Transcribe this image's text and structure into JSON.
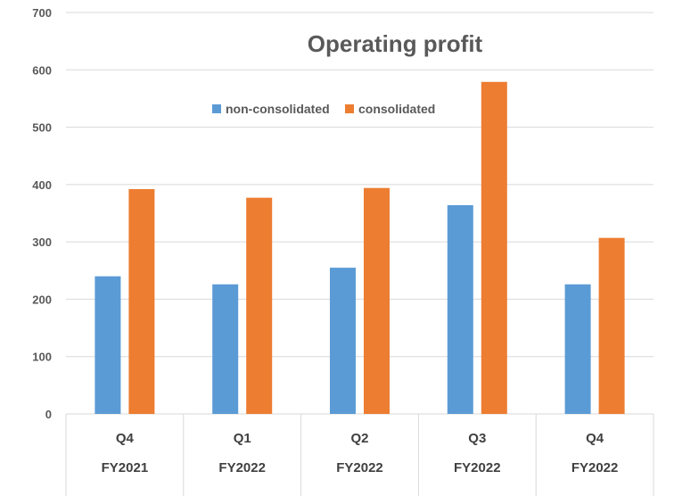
{
  "chart_data": {
    "type": "bar",
    "title": "Operating profit",
    "xlabel": "",
    "ylabel": "",
    "ylim": [
      0,
      700
    ],
    "yticks": [
      0,
      100,
      200,
      300,
      400,
      500,
      600,
      700
    ],
    "grid": true,
    "legend_position": "top-center",
    "categories": [
      {
        "quarter": "Q4",
        "year": "FY2021"
      },
      {
        "quarter": "Q1",
        "year": "FY2022"
      },
      {
        "quarter": "Q2",
        "year": "FY2022"
      },
      {
        "quarter": "Q3",
        "year": "FY2022"
      },
      {
        "quarter": "Q4",
        "year": "FY2022"
      }
    ],
    "series": [
      {
        "name": "non-consolidated",
        "color": "#5B9BD5",
        "values": [
          240,
          226,
          255,
          364,
          226
        ]
      },
      {
        "name": "consolidated",
        "color": "#ED7D31",
        "values": [
          392,
          377,
          394,
          579,
          307
        ]
      }
    ]
  }
}
